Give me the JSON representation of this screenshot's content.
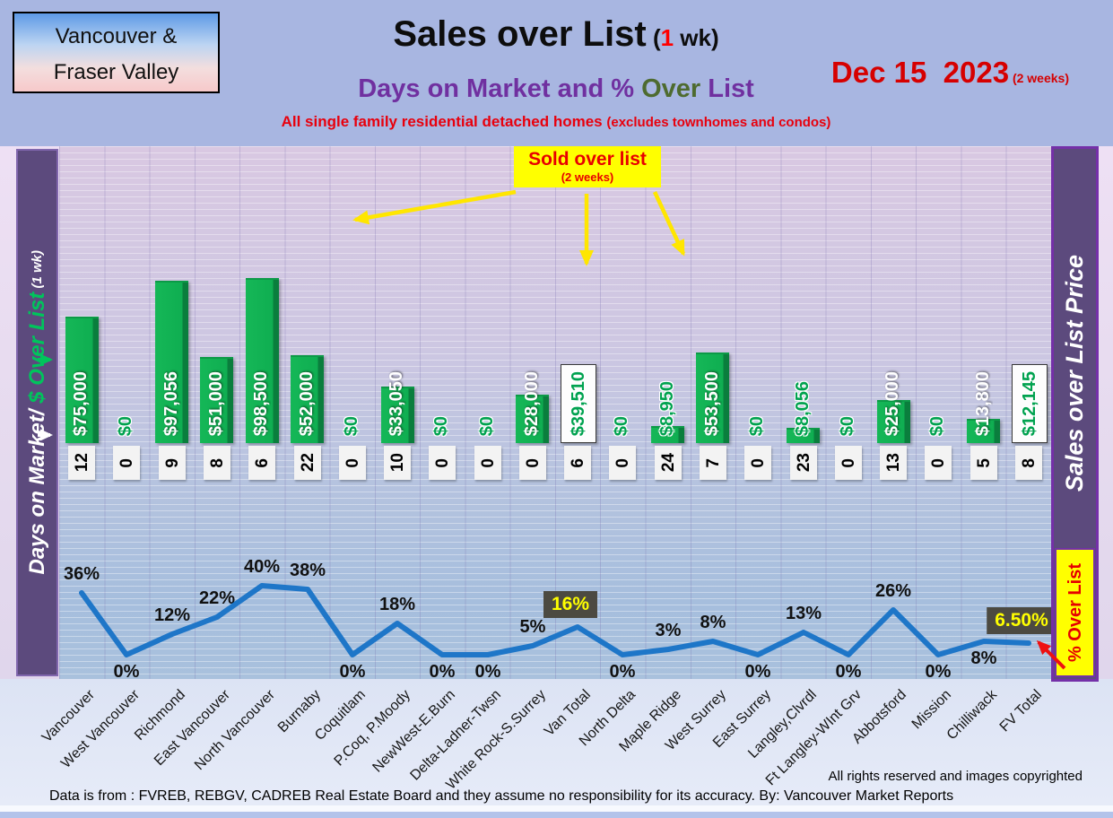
{
  "header": {
    "region_line1": "Vancouver &",
    "region_line2": "Fraser Valley",
    "title_main": "Sales over List",
    "title_paren_open": " (",
    "title_week_num": "1",
    "title_paren_rest": " wk)",
    "date": "Dec 15  2023",
    "date_note": " (2 weeks)",
    "subtitle_part1": "Days on Market and % ",
    "subtitle_part2": "Over",
    "subtitle_part3": " List",
    "tagline": "All single family residential detached homes ",
    "tagline_note": "(excludes townhomes and condos)"
  },
  "callout": {
    "line1": "Sold over list",
    "line2": "(2 weeks)"
  },
  "left_axis": {
    "days_part": "Days on Market/",
    "dollar_part": " $ Over List",
    "wk_part": " (1 wk)"
  },
  "right_axis": {
    "title": "Sales over List Price",
    "badge": "% Over List"
  },
  "footer": {
    "rights": "All rights reserved and  images copyrighted",
    "source": "Data is from : FVREB, REBGV, CADREB Real Estate Board and they assume no responsibility for its accuracy. By: Vancouver Market Reports"
  },
  "colors": {
    "bar_green": "#0fae51",
    "bar_green_dark": "#0a7e3d",
    "line_blue": "#1e76c8",
    "accent_red": "#e8000d",
    "title_purple": "#7030a0",
    "title_olive": "#4e6b2f",
    "sidebar_purple": "#5c4a7d",
    "highlight_box": "#4c4a41",
    "highlight_text": "#ffff00",
    "callout_yellow": "#ffff00",
    "value_green": "#00a24f"
  },
  "chart_data": {
    "type": "combo",
    "title": "Sales over List (1 wk)",
    "subtitle": "Days on Market and % Over List",
    "note": "All single family residential detached homes (excludes townhomes and condos)",
    "date": "Dec 15 2023 (2 weeks)",
    "region": "Vancouver & Fraser Valley",
    "grid": true,
    "legend_position": "none",
    "categories": [
      "Vancouver",
      "West Vancouver",
      "Richmond",
      "East Vancouver",
      "North Vancouver",
      "Burnaby",
      "Coquitlam",
      "P.Coq, P.Moody",
      "NewWest-E.Burn",
      "Delta-Ladner-Twsn",
      "White Rock-S.Surrey",
      "Van Total",
      "North Delta",
      "Maple Ridge",
      "West Surrey",
      "East Surrey",
      "Langley,Clvrdl",
      "Ft Langley-WInt Grv",
      "Abbotsford",
      "Mission",
      "Chilliwack",
      "FV Total"
    ],
    "series": [
      {
        "name": "$ Over List (1 wk)",
        "type": "bar",
        "axis_max": 98500,
        "values": [
          75000,
          0,
          97056,
          51000,
          98500,
          52000,
          0,
          33050,
          0,
          0,
          28000,
          39510,
          0,
          8950,
          53500,
          0,
          8056,
          0,
          25000,
          0,
          13800,
          12145
        ],
        "labels": [
          "$75,000",
          "$0",
          "$97,056",
          "$51,000",
          "$98,500",
          "$52,000",
          "$0",
          "$33,050",
          "$0",
          "$0",
          "$28,000",
          "$39,510",
          "$0",
          "$8,950",
          "$53,500",
          "$0",
          "$8,056",
          "$0",
          "$25,000",
          "$0",
          "$13,800",
          "$12,145"
        ],
        "bar_styles": [
          "bar",
          "zero",
          "bar",
          "bar",
          "bar",
          "bar",
          "zero",
          "bar",
          "zero",
          "zero",
          "bar",
          "total",
          "zero",
          "bar",
          "bar",
          "zero",
          "bar",
          "zero",
          "bar",
          "zero",
          "bar",
          "total"
        ],
        "label_colors": [
          "white",
          "green",
          "white",
          "white",
          "white",
          "white",
          "green",
          "white",
          "green",
          "green",
          "white",
          "green",
          "green",
          "green",
          "white",
          "green",
          "green",
          "green",
          "white",
          "green",
          "white",
          "green"
        ]
      },
      {
        "name": "Days on Market (1 wk)",
        "type": "labels",
        "values": [
          12,
          0,
          9,
          8,
          6,
          22,
          0,
          10,
          0,
          0,
          0,
          6,
          0,
          24,
          7,
          0,
          23,
          0,
          13,
          0,
          5,
          8
        ]
      },
      {
        "name": "% Over List (2 weeks)",
        "type": "line",
        "values": [
          36,
          0,
          12,
          22,
          40,
          38,
          0,
          18,
          0,
          0,
          5,
          16,
          0,
          3,
          8,
          0,
          13,
          0,
          26,
          0,
          8,
          6.5
        ],
        "labels": [
          "36%",
          "0%",
          "12%",
          "22%",
          "40%",
          "38%",
          "0%",
          "18%",
          "0%",
          "0%",
          "5%",
          "16%",
          "0%",
          "3%",
          "8%",
          "0%",
          "13%",
          "0%",
          "26%",
          "0%",
          "8%",
          "6.50%"
        ],
        "label_positions": [
          "above",
          "below",
          "above",
          "above",
          "above",
          "above",
          "below",
          "above",
          "below",
          "below",
          "above",
          "box",
          "below",
          "above",
          "above",
          "below",
          "above",
          "below",
          "above",
          "below",
          "below",
          "box"
        ]
      }
    ]
  }
}
